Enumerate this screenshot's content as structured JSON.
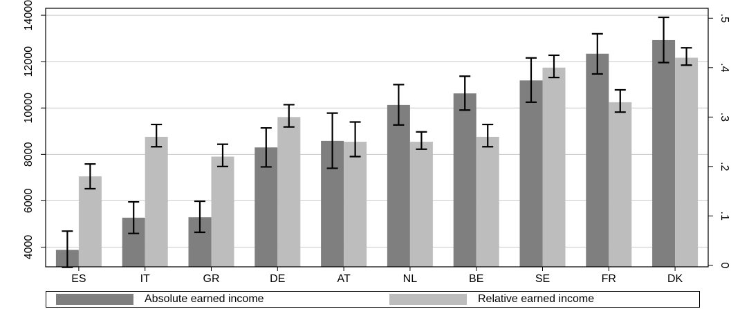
{
  "chart_data": {
    "type": "bar",
    "categories": [
      "ES",
      "IT",
      "GR",
      "DE",
      "AT",
      "NL",
      "BE",
      "SE",
      "FR",
      "DK"
    ],
    "series": [
      {
        "name": "Absolute earned income",
        "axis": "left",
        "color": "#7f7f7f",
        "values": [
          3880,
          5270,
          5290,
          8300,
          8580,
          10130,
          10630,
          11190,
          12340,
          12930
        ],
        "error_low": [
          3130,
          4590,
          4640,
          7460,
          7400,
          9270,
          9910,
          10250,
          11470,
          11960
        ],
        "error_high": [
          4690,
          5950,
          5980,
          9140,
          9780,
          11010,
          11370,
          12160,
          13200,
          13910
        ]
      },
      {
        "name": "Relative earned income",
        "axis": "right",
        "color": "#bdbdbd",
        "values": [
          0.18,
          0.26,
          0.22,
          0.3,
          0.25,
          0.25,
          0.26,
          0.4,
          0.33,
          0.42
        ],
        "error_low": [
          0.155,
          0.24,
          0.2,
          0.28,
          0.22,
          0.235,
          0.24,
          0.38,
          0.31,
          0.405
        ],
        "error_high": [
          0.205,
          0.285,
          0.245,
          0.325,
          0.29,
          0.27,
          0.285,
          0.425,
          0.355,
          0.44
        ]
      }
    ],
    "y_left": {
      "ticks": [
        4000,
        6000,
        8000,
        10000,
        12000,
        14000
      ],
      "ylim": [
        3150,
        14300
      ]
    },
    "y_right": {
      "ticks": [
        0,
        0.1,
        0.2,
        0.3,
        0.4,
        0.5
      ],
      "tick_labels": [
        "0",
        ".1",
        ".2",
        ".3",
        ".4",
        ".5"
      ],
      "ylim": [
        -0.003,
        0.52
      ]
    },
    "grid": "horizontal",
    "legend_position": "bottom",
    "title": "",
    "xlabel": "",
    "ylabel": ""
  }
}
